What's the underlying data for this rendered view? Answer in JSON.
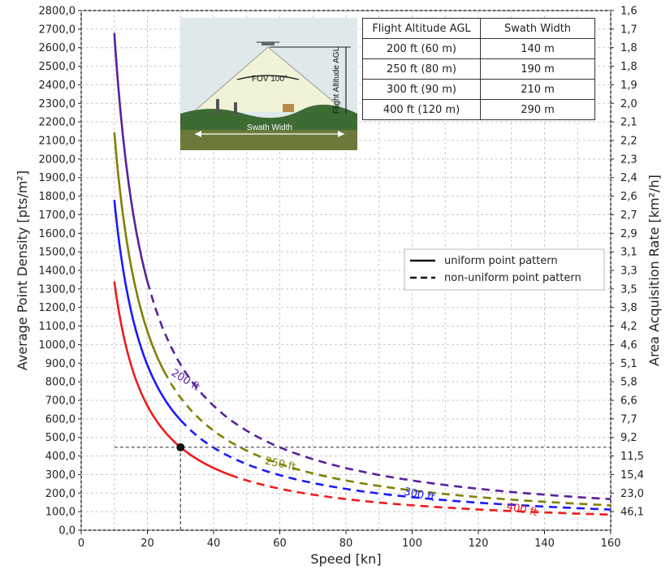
{
  "chart_data": {
    "type": "line",
    "xlabel": "Speed [kn]",
    "ylabel": "Average Point Density [pts/m²]",
    "y2label": "Area Acquisition Rate [km²/h]",
    "xlim": [
      0,
      160
    ],
    "ylim": [
      0,
      2800
    ],
    "x_ticks": [
      "0",
      "20",
      "40",
      "60",
      "80",
      "100",
      "120",
      "140",
      "160"
    ],
    "y_ticks": [
      "0,0",
      "100,0",
      "200,0",
      "300,0",
      "400,0",
      "500,0",
      "600,0",
      "700,0",
      "800,0",
      "900,0",
      "1000,0",
      "1100,0",
      "1200,0",
      "1300,0",
      "1400,0",
      "1500,0",
      "1600,0",
      "1700,0",
      "1800,0",
      "1900,0",
      "2000,0",
      "2100,0",
      "2200,0",
      "2300,0",
      "2400,0",
      "2500,0",
      "2600,0",
      "2700,0",
      "2800,0"
    ],
    "y2_ticks": [
      "46,1",
      "23,0",
      "15,4",
      "11,5",
      "9,2",
      "7,7",
      "6,6",
      "5,8",
      "5,1",
      "4,6",
      "4,2",
      "3,8",
      "3,5",
      "3,3",
      "3,1",
      "2,9",
      "2,7",
      "2,6",
      "2,4",
      "2,3",
      "2,2",
      "2,1",
      "2,0",
      "1,9",
      "1,8",
      "1,8",
      "1,7",
      "1,6"
    ],
    "grid": true,
    "legend_position": "right",
    "legend": [
      {
        "label": "uniform point pattern",
        "style": "solid"
      },
      {
        "label": "non-uniform point pattern",
        "style": "dashed"
      }
    ],
    "series": [
      {
        "name": "200 ft",
        "color": "#5b1f9e",
        "label_at": [
          31,
          795
        ],
        "solid_x": [
          10,
          20
        ],
        "dashed_x": [
          20,
          160
        ],
        "x": [
          10,
          12,
          15,
          20,
          30,
          40,
          60,
          80,
          100,
          120,
          140,
          160
        ],
        "y": [
          2680,
          2230,
          1790,
          1340,
          890,
          670,
          447,
          335,
          268,
          223,
          191,
          168
        ]
      },
      {
        "name": "250 ft",
        "color": "#808000",
        "label_at": [
          60,
          340
        ],
        "solid_x": [
          10,
          25
        ],
        "dashed_x": [
          25,
          160
        ],
        "x": [
          10,
          12,
          15,
          20,
          25,
          30,
          40,
          60,
          80,
          100,
          120,
          140,
          160
        ],
        "y": [
          2140,
          1790,
          1430,
          1070,
          860,
          715,
          535,
          357,
          268,
          214,
          179,
          153,
          134
        ]
      },
      {
        "name": "300 ft",
        "color": "#1a1aff",
        "label_at": [
          102,
          175
        ],
        "solid_x": [
          10,
          30
        ],
        "dashed_x": [
          30,
          160
        ],
        "x": [
          10,
          12,
          15,
          20,
          30,
          40,
          60,
          80,
          100,
          120,
          140,
          160
        ],
        "y": [
          1780,
          1480,
          1190,
          890,
          593,
          445,
          297,
          223,
          178,
          148,
          127,
          111
        ]
      },
      {
        "name": "400 ft",
        "color": "#ee1c1c",
        "label_at": [
          133,
          95
        ],
        "solid_x": [
          10,
          45
        ],
        "dashed_x": [
          45,
          160
        ],
        "x": [
          10,
          12,
          15,
          20,
          30,
          40,
          45,
          60,
          80,
          100,
          120,
          140,
          160
        ],
        "y": [
          1340,
          1120,
          890,
          670,
          447,
          335,
          298,
          223,
          168,
          134,
          112,
          96,
          84
        ]
      }
    ],
    "reference_point": {
      "x": 30,
      "y": 447
    },
    "inset_labels": {
      "fov": "FOV 100°",
      "swath": "Swath Width",
      "altitude": "Flight Altitude AGL"
    }
  },
  "table": {
    "headers": [
      "Flight Altitude AGL",
      "Swath Width"
    ],
    "rows": [
      [
        "200 ft (60 m)",
        "140 m"
      ],
      [
        "250 ft (80 m)",
        "190 m"
      ],
      [
        "300 ft (90 m)",
        "210 m"
      ],
      [
        "400 ft (120 m)",
        "290 m"
      ]
    ]
  }
}
